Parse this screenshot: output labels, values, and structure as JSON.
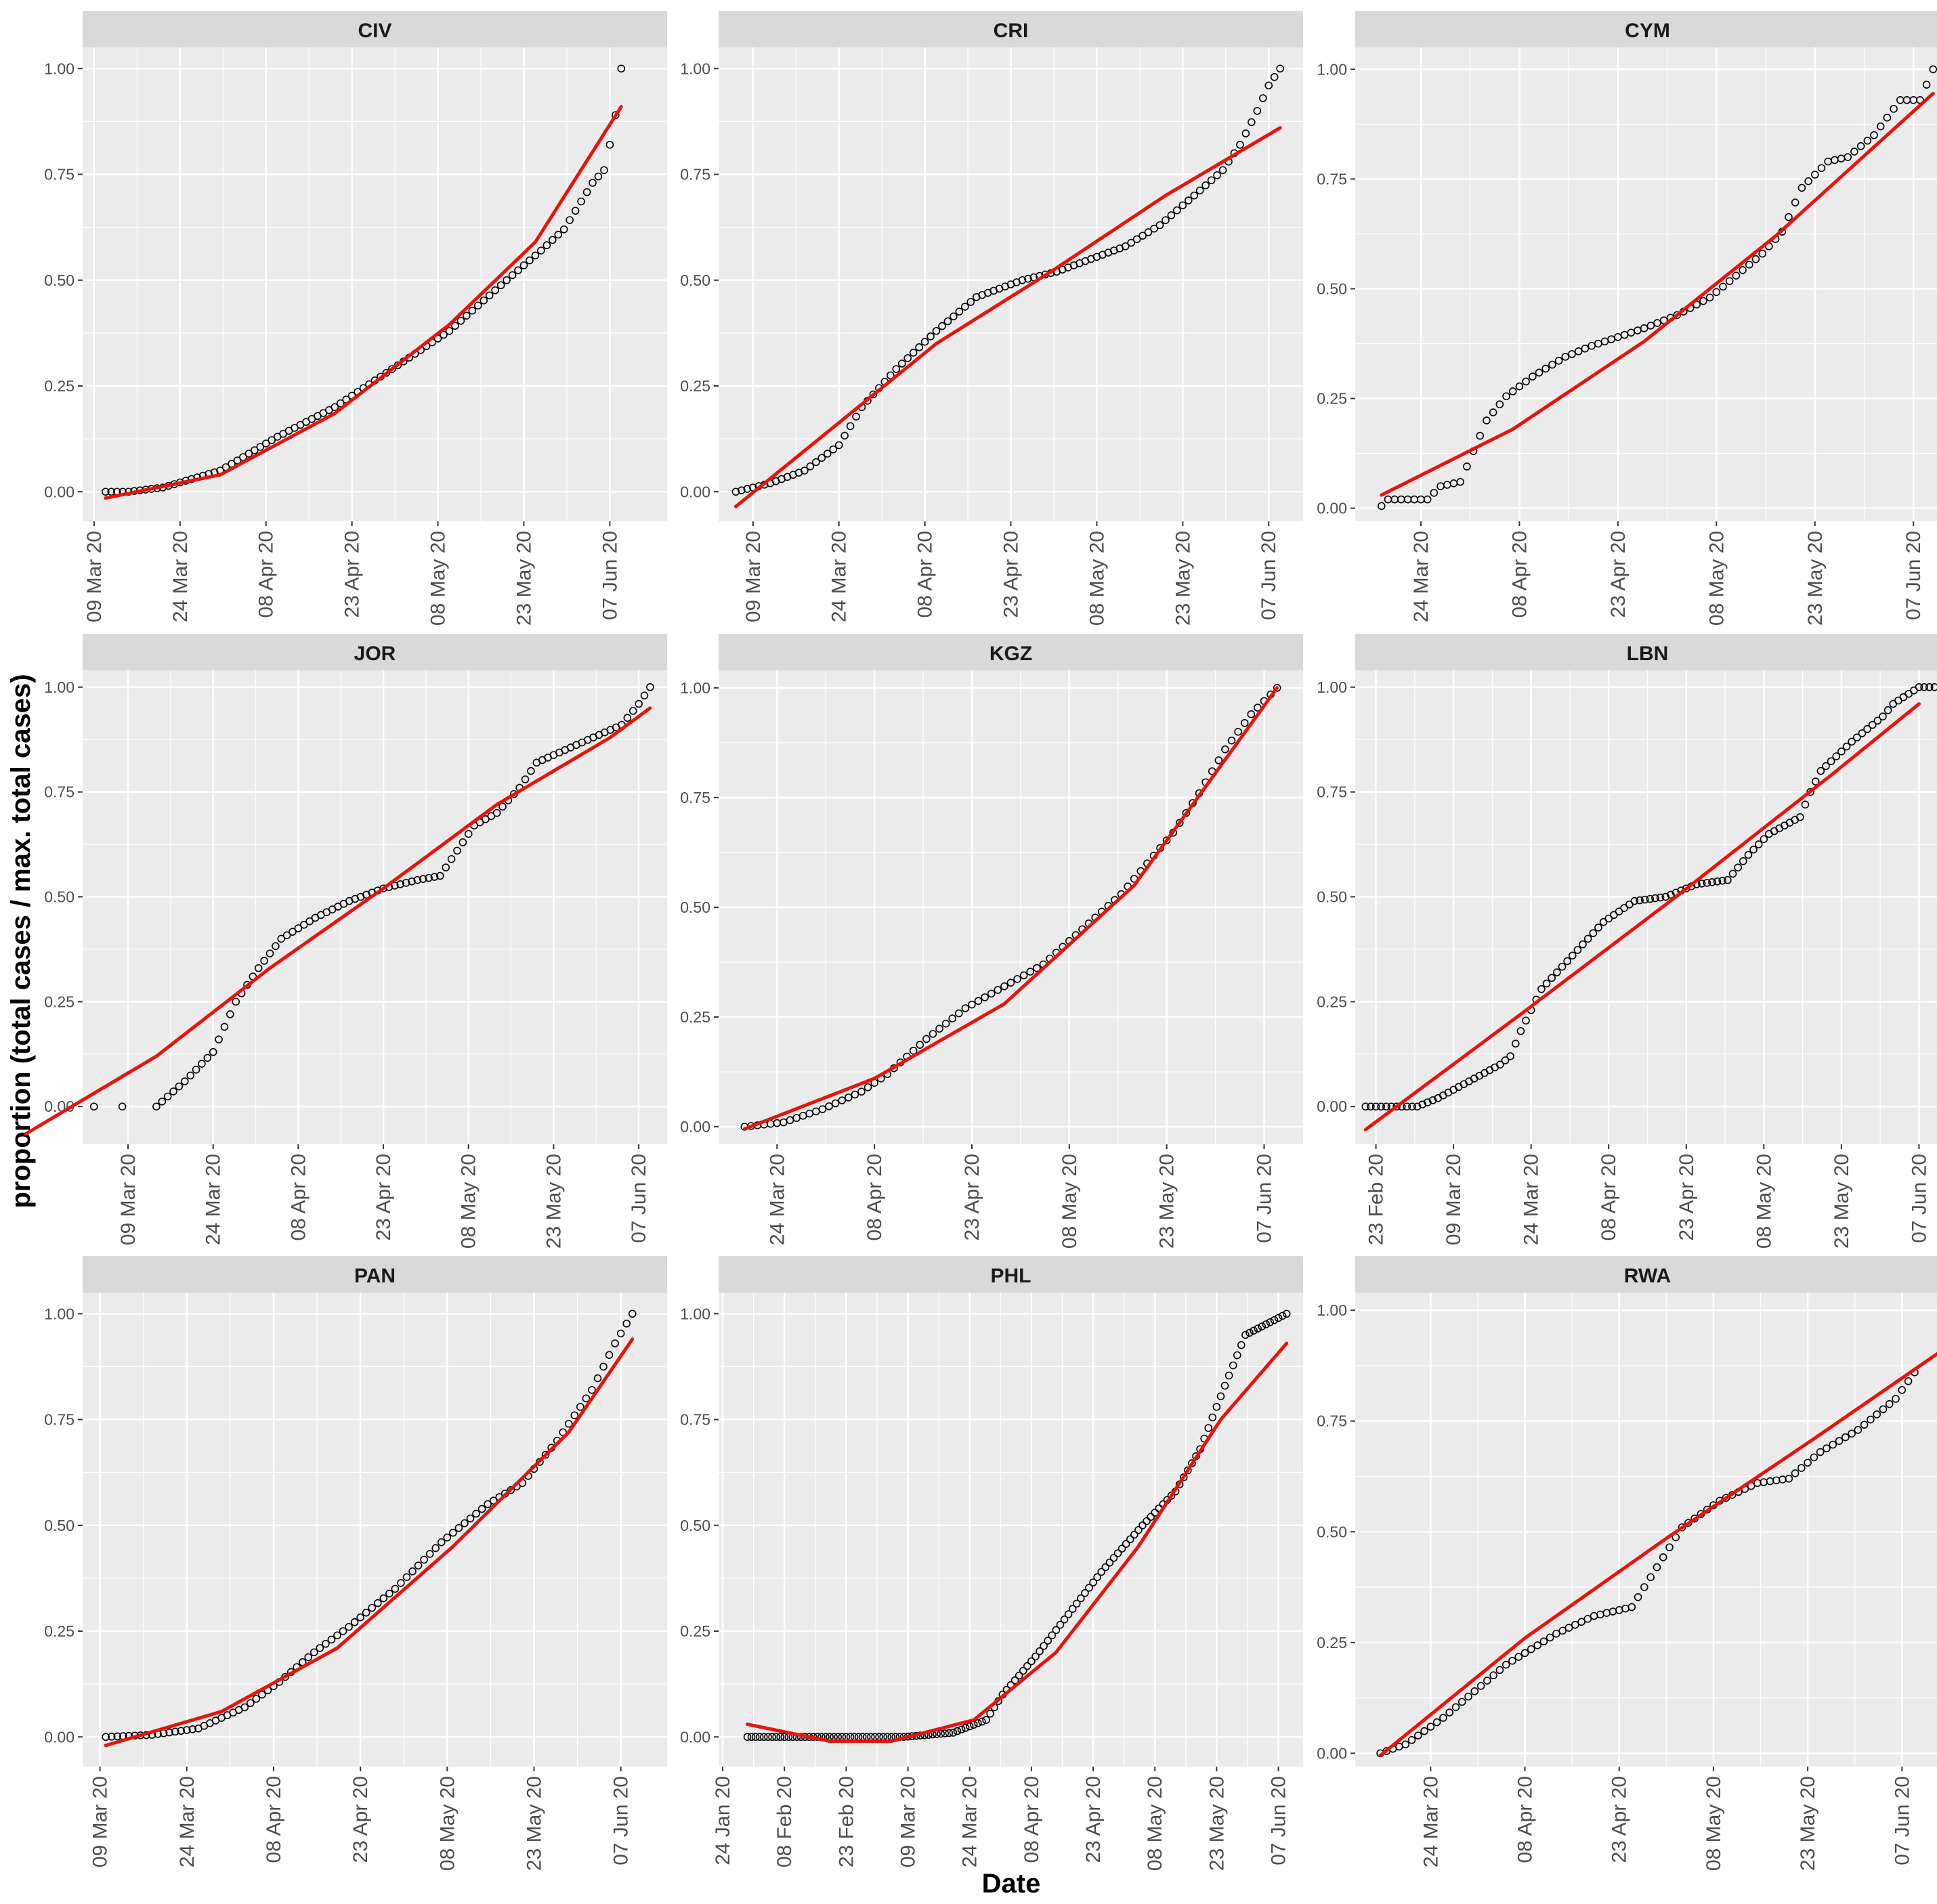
{
  "chart_data": {
    "type": "scatter",
    "layout": "facet-grid-3x3",
    "xlabel": "Date",
    "ylabel": "proportion (total cases / max. total cases)",
    "y_ticks": [
      0.0,
      0.25,
      0.5,
      0.75,
      1.0
    ],
    "y_tick_labels": [
      "0.00",
      "0.25",
      "0.50",
      "0.75",
      "1.00"
    ],
    "colors": {
      "panel_bg": "#EBEBEB",
      "grid": "#FFFFFF",
      "strip_bg": "#D9D9D9",
      "fit_line": "#E8140C",
      "points": "#000000"
    },
    "panels": [
      {
        "label": "CIV",
        "xlim": [
          "2020-03-07",
          "2020-06-17"
        ],
        "ylim": [
          -0.07,
          1.05
        ],
        "x_ticks": [
          "2020-03-09",
          "2020-03-24",
          "2020-04-08",
          "2020-04-23",
          "2020-05-08",
          "2020-05-23",
          "2020-06-07"
        ],
        "x_tick_labels": [
          "09 Mar 20",
          "24 Mar 20",
          "08 Apr 20",
          "23 Apr 20",
          "08 May 20",
          "23 May 20",
          "07 Jun 20"
        ],
        "start": "2020-03-11",
        "end": "2020-06-09",
        "data_anchors": [
          [
            0,
            0
          ],
          [
            4,
            0
          ],
          [
            10,
            0.01
          ],
          [
            20,
            0.05
          ],
          [
            30,
            0.13
          ],
          [
            40,
            0.2
          ],
          [
            50,
            0.29
          ],
          [
            60,
            0.38
          ],
          [
            70,
            0.5
          ],
          [
            76,
            0.57
          ],
          [
            80,
            0.62
          ],
          [
            85,
            0.73
          ],
          [
            87,
            0.76
          ],
          [
            88,
            0.82
          ],
          [
            89,
            0.89
          ],
          [
            90,
            1
          ]
        ],
        "fit_anchors": [
          [
            0,
            -0.015
          ],
          [
            20,
            0.04
          ],
          [
            40,
            0.185
          ],
          [
            60,
            0.395
          ],
          [
            75,
            0.59
          ],
          [
            90,
            0.91
          ]
        ]
      },
      {
        "label": "CRI",
        "xlim": [
          "2020-03-03",
          "2020-06-13"
        ],
        "ylim": [
          -0.07,
          1.05
        ],
        "x_ticks": [
          "2020-03-09",
          "2020-03-24",
          "2020-04-08",
          "2020-04-23",
          "2020-05-08",
          "2020-05-23",
          "2020-06-07"
        ],
        "x_tick_labels": [
          "09 Mar 20",
          "24 Mar 20",
          "08 Apr 20",
          "23 Apr 20",
          "08 May 20",
          "23 May 20",
          "07 Jun 20"
        ],
        "start": "2020-03-06",
        "end": "2020-06-09",
        "data_anchors": [
          [
            0,
            0
          ],
          [
            6,
            0.02
          ],
          [
            12,
            0.05
          ],
          [
            18,
            0.11
          ],
          [
            22,
            0.2
          ],
          [
            28,
            0.29
          ],
          [
            35,
            0.38
          ],
          [
            42,
            0.46
          ],
          [
            50,
            0.5
          ],
          [
            56,
            0.52
          ],
          [
            62,
            0.55
          ],
          [
            68,
            0.58
          ],
          [
            74,
            0.63
          ],
          [
            80,
            0.7
          ],
          [
            85,
            0.76
          ],
          [
            88,
            0.82
          ],
          [
            91,
            0.9
          ],
          [
            93,
            0.96
          ],
          [
            95,
            1
          ]
        ],
        "fit_anchors": [
          [
            0,
            -0.035
          ],
          [
            15,
            0.13
          ],
          [
            35,
            0.35
          ],
          [
            55,
            0.52
          ],
          [
            75,
            0.7
          ],
          [
            95,
            0.86
          ]
        ]
      },
      {
        "label": "CYM",
        "xlim": [
          "2020-03-14",
          "2020-06-11"
        ],
        "ylim": [
          -0.03,
          1.05
        ],
        "x_ticks": [
          "2020-03-24",
          "2020-04-08",
          "2020-04-23",
          "2020-05-08",
          "2020-05-23",
          "2020-06-07"
        ],
        "x_tick_labels": [
          "24 Mar 20",
          "08 Apr 20",
          "23 Apr 20",
          "08 May 20",
          "23 May 20",
          "07 Jun 20"
        ],
        "start": "2020-03-18",
        "end": "2020-06-10",
        "data_anchors": [
          [
            0,
            0.005
          ],
          [
            1,
            0.02
          ],
          [
            7,
            0.02
          ],
          [
            9,
            0.05
          ],
          [
            12,
            0.06
          ],
          [
            16,
            0.2
          ],
          [
            19,
            0.255
          ],
          [
            23,
            0.3
          ],
          [
            28,
            0.345
          ],
          [
            32,
            0.37
          ],
          [
            36,
            0.39
          ],
          [
            40,
            0.41
          ],
          [
            45,
            0.44
          ],
          [
            50,
            0.48
          ],
          [
            54,
            0.53
          ],
          [
            58,
            0.58
          ],
          [
            61,
            0.63
          ],
          [
            64,
            0.73
          ],
          [
            68,
            0.79
          ],
          [
            71,
            0.8
          ],
          [
            75,
            0.85
          ],
          [
            79,
            0.93
          ],
          [
            82,
            0.93
          ],
          [
            84,
            1
          ]
        ],
        "fit_anchors": [
          [
            0,
            0.03
          ],
          [
            20,
            0.18
          ],
          [
            40,
            0.38
          ],
          [
            60,
            0.62
          ],
          [
            84,
            0.945
          ]
        ]
      },
      {
        "label": "JOR",
        "xlim": [
          "2020-03-01",
          "2020-06-12"
        ],
        "ylim": [
          -0.09,
          1.04
        ],
        "x_ticks": [
          "2020-03-09",
          "2020-03-24",
          "2020-04-08",
          "2020-04-23",
          "2020-05-08",
          "2020-05-23",
          "2020-06-07"
        ],
        "x_tick_labels": [
          "09 Mar 20",
          "24 Mar 20",
          "08 Apr 20",
          "23 Apr 20",
          "08 May 20",
          "23 May 20",
          "07 Jun 20"
        ],
        "start": "2020-03-14",
        "end": "2020-06-09",
        "extra_points": [
          [
            "2020-03-03",
            0.0
          ],
          [
            "2020-03-08",
            0.0
          ]
        ],
        "data_anchors": [
          [
            0,
            0
          ],
          [
            5,
            0.06
          ],
          [
            10,
            0.13
          ],
          [
            14,
            0.25
          ],
          [
            18,
            0.33
          ],
          [
            22,
            0.4
          ],
          [
            28,
            0.45
          ],
          [
            34,
            0.49
          ],
          [
            40,
            0.52
          ],
          [
            46,
            0.54
          ],
          [
            50,
            0.55
          ],
          [
            52,
            0.59
          ],
          [
            56,
            0.67
          ],
          [
            60,
            0.7
          ],
          [
            64,
            0.76
          ],
          [
            67,
            0.82
          ],
          [
            72,
            0.85
          ],
          [
            77,
            0.88
          ],
          [
            82,
            0.91
          ],
          [
            85,
            0.96
          ],
          [
            87,
            1
          ]
        ],
        "fit_anchors": [
          [
            -23,
            -0.065
          ],
          [
            0,
            0.12
          ],
          [
            20,
            0.33
          ],
          [
            40,
            0.52
          ],
          [
            60,
            0.72
          ],
          [
            80,
            0.88
          ],
          [
            87,
            0.95
          ]
        ]
      },
      {
        "label": "KGZ",
        "xlim": [
          "2020-03-15",
          "2020-06-13"
        ],
        "ylim": [
          -0.04,
          1.04
        ],
        "x_ticks": [
          "2020-03-24",
          "2020-04-08",
          "2020-04-23",
          "2020-05-08",
          "2020-05-23",
          "2020-06-07"
        ],
        "x_tick_labels": [
          "24 Mar 20",
          "08 Apr 20",
          "23 Apr 20",
          "08 May 20",
          "23 May 20",
          "07 Jun 20"
        ],
        "start": "2020-03-19",
        "end": "2020-06-09",
        "data_anchors": [
          [
            0,
            0
          ],
          [
            6,
            0.01
          ],
          [
            12,
            0.04
          ],
          [
            18,
            0.08
          ],
          [
            22,
            0.12
          ],
          [
            28,
            0.2
          ],
          [
            34,
            0.27
          ],
          [
            40,
            0.32
          ],
          [
            46,
            0.37
          ],
          [
            52,
            0.45
          ],
          [
            58,
            0.53
          ],
          [
            62,
            0.6
          ],
          [
            66,
            0.67
          ],
          [
            70,
            0.76
          ],
          [
            74,
            0.86
          ],
          [
            78,
            0.94
          ],
          [
            80,
            0.97
          ],
          [
            82,
            1
          ]
        ],
        "fit_anchors": [
          [
            0,
            -0.005
          ],
          [
            20,
            0.11
          ],
          [
            40,
            0.28
          ],
          [
            60,
            0.55
          ],
          [
            82,
            1.0
          ]
        ]
      },
      {
        "label": "LBN",
        "xlim": [
          "2020-02-19",
          "2020-06-11"
        ],
        "ylim": [
          -0.09,
          1.04
        ],
        "x_ticks": [
          "2020-02-23",
          "2020-03-09",
          "2020-03-24",
          "2020-04-08",
          "2020-04-23",
          "2020-05-08",
          "2020-05-23",
          "2020-06-07"
        ],
        "x_tick_labels": [
          "23 Feb 20",
          "09 Mar 20",
          "24 Mar 20",
          "08 Apr 20",
          "23 Apr 20",
          "08 May 20",
          "23 May 20",
          "07 Jun 20"
        ],
        "start": "2020-02-21",
        "end": "2020-06-10",
        "data_anchors": [
          [
            0,
            0
          ],
          [
            10,
            0
          ],
          [
            14,
            0.02
          ],
          [
            20,
            0.06
          ],
          [
            26,
            0.1
          ],
          [
            28,
            0.12
          ],
          [
            30,
            0.18
          ],
          [
            34,
            0.28
          ],
          [
            40,
            0.36
          ],
          [
            46,
            0.44
          ],
          [
            52,
            0.49
          ],
          [
            58,
            0.5
          ],
          [
            64,
            0.53
          ],
          [
            70,
            0.54
          ],
          [
            74,
            0.6
          ],
          [
            78,
            0.65
          ],
          [
            84,
            0.69
          ],
          [
            86,
            0.75
          ],
          [
            88,
            0.8
          ],
          [
            94,
            0.87
          ],
          [
            100,
            0.93
          ],
          [
            102,
            0.96
          ],
          [
            107,
            1
          ]
        ],
        "fit_anchors": [
          [
            0,
            -0.055
          ],
          [
            30,
            0.22
          ],
          [
            60,
            0.5
          ],
          [
            90,
            0.79
          ],
          [
            107,
            0.96
          ]
        ]
      },
      {
        "label": "PAN",
        "xlim": [
          "2020-03-06",
          "2020-06-15"
        ],
        "ylim": [
          -0.07,
          1.05
        ],
        "x_ticks": [
          "2020-03-09",
          "2020-03-24",
          "2020-04-08",
          "2020-04-23",
          "2020-05-08",
          "2020-05-23",
          "2020-06-07"
        ],
        "x_tick_labels": [
          "09 Mar 20",
          "24 Mar 20",
          "08 Apr 20",
          "23 Apr 20",
          "08 May 20",
          "23 May 20",
          "07 Jun 20"
        ],
        "start": "2020-03-10",
        "end": "2020-06-09",
        "data_anchors": [
          [
            0,
            0
          ],
          [
            8,
            0.005
          ],
          [
            16,
            0.02
          ],
          [
            24,
            0.07
          ],
          [
            30,
            0.13
          ],
          [
            36,
            0.2
          ],
          [
            42,
            0.26
          ],
          [
            50,
            0.35
          ],
          [
            58,
            0.46
          ],
          [
            66,
            0.55
          ],
          [
            72,
            0.6
          ],
          [
            78,
            0.7
          ],
          [
            84,
            0.82
          ],
          [
            88,
            0.93
          ],
          [
            91,
            1
          ]
        ],
        "fit_anchors": [
          [
            0,
            -0.02
          ],
          [
            20,
            0.06
          ],
          [
            40,
            0.21
          ],
          [
            60,
            0.45
          ],
          [
            80,
            0.72
          ],
          [
            91,
            0.94
          ]
        ]
      },
      {
        "label": "PHL",
        "xlim": [
          "2020-01-23",
          "2020-06-13"
        ],
        "ylim": [
          -0.07,
          1.05
        ],
        "x_ticks": [
          "2020-01-24",
          "2020-02-08",
          "2020-02-23",
          "2020-03-09",
          "2020-03-24",
          "2020-04-08",
          "2020-04-23",
          "2020-05-08",
          "2020-05-23",
          "2020-06-07"
        ],
        "x_tick_labels": [
          "24 Jan 20",
          "08 Feb 20",
          "23 Feb 20",
          "09 Mar 20",
          "24 Mar 20",
          "08 Apr 20",
          "23 Apr 20",
          "08 May 20",
          "23 May 20",
          "07 Jun 20"
        ],
        "start": "2020-01-30",
        "end": "2020-06-09",
        "data_anchors": [
          [
            0,
            0
          ],
          [
            38,
            0
          ],
          [
            50,
            0.01
          ],
          [
            58,
            0.04
          ],
          [
            62,
            0.1
          ],
          [
            70,
            0.19
          ],
          [
            78,
            0.29
          ],
          [
            86,
            0.39
          ],
          [
            96,
            0.5
          ],
          [
            104,
            0.58
          ],
          [
            110,
            0.68
          ],
          [
            116,
            0.83
          ],
          [
            121,
            0.95
          ],
          [
            131,
            1
          ]
        ],
        "fit_anchors": [
          [
            0,
            0.03
          ],
          [
            20,
            -0.01
          ],
          [
            35,
            -0.01
          ],
          [
            55,
            0.04
          ],
          [
            75,
            0.2
          ],
          [
            95,
            0.45
          ],
          [
            115,
            0.75
          ],
          [
            131,
            0.93
          ]
        ]
      },
      {
        "label": "RWA",
        "xlim": [
          "2020-03-12",
          "2020-06-13"
        ],
        "ylim": [
          -0.03,
          1.04
        ],
        "x_ticks": [
          "2020-03-24",
          "2020-04-08",
          "2020-04-23",
          "2020-05-08",
          "2020-05-23",
          "2020-06-07"
        ],
        "x_tick_labels": [
          "24 Mar 20",
          "08 Apr 20",
          "23 Apr 20",
          "08 May 20",
          "23 May 20",
          "07 Jun 20"
        ],
        "start": "2020-03-16",
        "end": "2020-06-09",
        "data_anchors": [
          [
            0,
            0
          ],
          [
            4,
            0.02
          ],
          [
            10,
            0.08
          ],
          [
            20,
            0.2
          ],
          [
            28,
            0.27
          ],
          [
            34,
            0.31
          ],
          [
            40,
            0.33
          ],
          [
            44,
            0.42
          ],
          [
            48,
            0.51
          ],
          [
            54,
            0.57
          ],
          [
            60,
            0.61
          ],
          [
            65,
            0.62
          ],
          [
            70,
            0.68
          ],
          [
            76,
            0.73
          ],
          [
            82,
            0.8
          ],
          [
            86,
            0.88
          ],
          [
            90,
            0.97
          ],
          [
            92,
            1
          ]
        ],
        "fit_anchors": [
          [
            0,
            -0.005
          ],
          [
            23,
            0.26
          ],
          [
            46,
            0.49
          ],
          [
            69,
            0.71
          ],
          [
            92,
            0.935
          ]
        ]
      }
    ]
  }
}
